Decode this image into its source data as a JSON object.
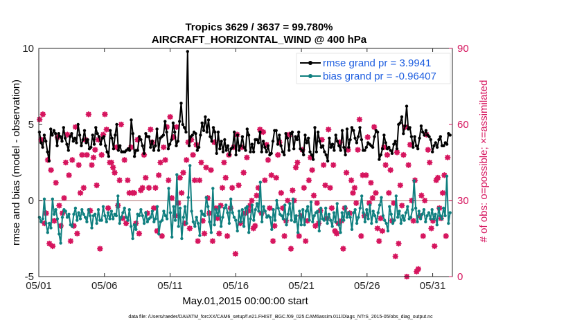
{
  "chart_data": {
    "type": "line",
    "title": "Tropics 3629 / 3637 = 99.780%",
    "subtitle": "AIRCRAFT_HORIZONTAL_WIND @ 400 hPa",
    "xlabel": "May.01,2015 00:00:00 start",
    "ylabel": "rmse and bias (model - observation)",
    "y2label": "# of obs: o=possible; ×=assimilated",
    "footnote": "data file: /Users/raeder/DAI/ATM_forcXX/CAM6_setup/f.e21.FHIST_BGC.f09_025.CAM6assim.011/Diags_NTrS_2015-05/obs_diag_output.nc",
    "xlim": [
      0,
      31.5
    ],
    "ylim": [
      -5,
      10
    ],
    "y2lim": [
      0,
      90
    ],
    "x_ticks": [
      0,
      5,
      10,
      15,
      20,
      25,
      30
    ],
    "x_tick_labels": [
      "05/01",
      "05/06",
      "05/11",
      "05/16",
      "05/21",
      "05/26",
      "05/31"
    ],
    "y_ticks": [
      -5,
      0,
      5,
      10
    ],
    "y_tick_labels": [
      "-5",
      "0",
      "5",
      "10"
    ],
    "y2_ticks": [
      0,
      30,
      60,
      90
    ],
    "y2_tick_labels": [
      "0",
      "30",
      "60",
      "90"
    ],
    "zero_line": true,
    "legend_position": "top-right",
    "colors": {
      "rmse": "#000000",
      "bias": "#0f7f7f",
      "obs": "#d6155e",
      "legend_text": "#1f5fe0",
      "zero_line": "#c9a0a0"
    },
    "series": [
      {
        "name": "rmse grand pr = 3.9941",
        "color": "#000000",
        "values": [
          4.5,
          3.8,
          3.5,
          4.3,
          3.9,
          3.2,
          2.6,
          4.7,
          4.3,
          4.6,
          4.4,
          3.6,
          4.4,
          4.2,
          3.9,
          4.8,
          4.1,
          3.7,
          3.3,
          4.2,
          4.4,
          3.9,
          4.1,
          3.8,
          5.0,
          4.3,
          3.6,
          4.0,
          4.6,
          3.8,
          4.0,
          3.4,
          3.5,
          4.3,
          3.7,
          4.8,
          4.4,
          4.2,
          3.7,
          4.1,
          4.2,
          3.6,
          3.2,
          2.9,
          4.6,
          4.1,
          3.4,
          4.3,
          5.0,
          3.3,
          3.6,
          3.2,
          3.2,
          3.2,
          3.3,
          3.4,
          3.3,
          5.3,
          4.4,
          2.9,
          3.3,
          3.3,
          4.2,
          4.0,
          3.6,
          3.1,
          4.4,
          4.2,
          4.2,
          3.5,
          3.9,
          3.3,
          3.6,
          4.7,
          3.3,
          4.1,
          4.2,
          4.3,
          5.2,
          4.5,
          3.4,
          3.7,
          4.0,
          5.1,
          4.5,
          3.6,
          3.9,
          5.2,
          6.4,
          5.0,
          4.8,
          4.5,
          9.8,
          3.6,
          4.2,
          4.3,
          4.5,
          4.4,
          3.3,
          3.5,
          4.3,
          5.1,
          4.6,
          5.5,
          4.5,
          5.3,
          4.2,
          3.9,
          4.8,
          4.5,
          3.1,
          4.5,
          3.4,
          3.9,
          3.2,
          4.0,
          3.3,
          3.6,
          3.0,
          3.4,
          3.5,
          4.5,
          3.0,
          4.3,
          3.3,
          3.6,
          4.2,
          3.5,
          3.3,
          4.7,
          4.3,
          3.2,
          3.7,
          3.2,
          4.0,
          4.0,
          3.8,
          4.5,
          3.2,
          3.9,
          3.5,
          3.2,
          3.6,
          3.0,
          3.1,
          3.9,
          4.6,
          4.6,
          3.7,
          4.3,
          3.6,
          3.2,
          3.0,
          4.4,
          4.1,
          3.3,
          4.4,
          4.5,
          3.4,
          4.2,
          4.0,
          4.5,
          3.4,
          3.3,
          3.0,
          4.3,
          3.8,
          4.1,
          3.2,
          3.0,
          2.7,
          4.8,
          3.2,
          4.5,
          3.9,
          3.5,
          3.6,
          3.2,
          3.0,
          2.6,
          4.1,
          3.5,
          3.7,
          3.3,
          4.3,
          3.9,
          3.6,
          3.3,
          4.6,
          3.5,
          3.0,
          4.7,
          3.5,
          4.0,
          4.8,
          4.6,
          4.1,
          3.8,
          4.2,
          4.8,
          4.0,
          3.3,
          3.3,
          3.5,
          3.8,
          3.7,
          3.6,
          3.5,
          4.2,
          4.6,
          4.5,
          2.7,
          3.0,
          3.4,
          4.3,
          3.8,
          3.4,
          3.5,
          3.3,
          3.1,
          3.7,
          3.9,
          3.4,
          5.0,
          5.1,
          5.5,
          4.4,
          4.9,
          6.2,
          4.7,
          4.8,
          4.2,
          3.5,
          4.2,
          3.6,
          3.4,
          4.1,
          4.9,
          4.5,
          4.3,
          4.6,
          4.3,
          4.2,
          4.0,
          3.2,
          3.6,
          3.8,
          3.5,
          4.0,
          4.2,
          3.6,
          3.6,
          3.8,
          3.7,
          4.4,
          4.3
        ]
      },
      {
        "name": "bias grand pr = -0.96407",
        "color": "#0f7f7f",
        "values": [
          -1.1,
          -1.4,
          -1.2,
          0.1,
          -1.5,
          -2.1,
          -1.5,
          -1.8,
          0.1,
          -0.9,
          -0.6,
          -1.2,
          -2.2,
          -2.8,
          -1.1,
          -0.6,
          -0.7,
          -1.1,
          -0.9,
          -1.6,
          -1.7,
          -0.9,
          -0.5,
          -1.3,
          -0.8,
          -1.2,
          -0.6,
          -0.9,
          -1.1,
          -1.4,
          -0.6,
          -1.0,
          -1.8,
          -1.0,
          -0.9,
          -1.5,
          -0.6,
          -1.3,
          -1.3,
          -0.4,
          -1.0,
          -1.4,
          -0.8,
          -1.2,
          -0.7,
          -1.2,
          -0.9,
          -1.0,
          0.3,
          -1.5,
          -1.1,
          -0.8,
          -0.5,
          -1.1,
          -1.3,
          -0.6,
          -1.7,
          -2.5,
          -1.6,
          -1.9,
          -0.9,
          -1.0,
          -0.6,
          -1.0,
          -1.5,
          -0.8,
          -1.4,
          -1.2,
          -1.1,
          -0.7,
          -1.4,
          -1.2,
          -0.4,
          -2.2,
          -1.4,
          -1.3,
          -0.7,
          -1.0,
          -1.2,
          0.8,
          -0.8,
          -2.4,
          -0.4,
          -1.3,
          1.7,
          -1.7,
          -0.5,
          -2.5,
          -1.1,
          -0.4,
          -1.5,
          0.2,
          2.3,
          -0.7,
          -1.4,
          -1.7,
          -1.1,
          -1.5,
          -2.3,
          -0.7,
          -0.9,
          -1.0,
          0.2,
          -0.4,
          -1.4,
          -2.1,
          0.8,
          -1.6,
          -0.6,
          -1.0,
          -0.4,
          -1.7,
          -1.1,
          -0.5,
          -0.3,
          -0.8,
          -1.5,
          0.1,
          -0.8,
          -1.1,
          -1.3,
          -2.0,
          -0.7,
          -1.4,
          -0.6,
          -1.7,
          -0.5,
          -0.4,
          -2.1,
          -1.2,
          -0.3,
          -1.3,
          -0.6,
          -0.2,
          -0.7,
          1.2,
          -1.4,
          -0.4,
          -0.7,
          -1.1,
          -1.0,
          -1.1,
          -1.9,
          -0.6,
          -1.3,
          0.0,
          -0.5,
          -0.9,
          -1.0,
          -1.2,
          -0.3,
          -1.6,
          -0.9,
          -0.2,
          -1.3,
          0.1,
          -1.4,
          -1.0,
          -2.1,
          -0.7,
          -1.6,
          -0.6,
          -1.6,
          -0.7,
          -0.4,
          -1.3,
          -0.1,
          -1.4,
          -1.0,
          -0.8,
          -0.7,
          -2.0,
          -0.5,
          -1.2,
          -1.3,
          -0.5,
          -1.5,
          -0.9,
          -1.3,
          -1.7,
          -0.8,
          -1.4,
          -0.2,
          -1.6,
          -2.1,
          -0.8,
          -1.3,
          -0.4,
          -1.1,
          -0.8,
          -1.1,
          -1.9,
          -0.8,
          -0.6,
          -1.5,
          -1.1,
          -0.5,
          0.3,
          -0.8,
          -1.4,
          -0.6,
          -1.2,
          -0.3,
          -1.5,
          -0.7,
          -1.0,
          -1.4,
          -0.8,
          -0.3,
          0.2,
          -1.0,
          -1.3,
          -1.5,
          -2.0,
          -0.4,
          -0.9,
          -1.5,
          -1.3,
          0.3,
          -1.1,
          -0.7,
          -1.5,
          -1.0,
          -1.3,
          -0.8,
          -0.4,
          -1.2,
          -1.1,
          -0.6,
          1.3,
          -0.5,
          -1.4,
          -0.7,
          -1.2,
          -0.9,
          -0.6,
          -1.4,
          -1.0,
          -0.8,
          -1.2,
          -0.6,
          -1.2,
          -0.9,
          -1.6,
          -0.5,
          -1.0,
          -1.2,
          -0.5,
          -1.0,
          1.6,
          -1.5,
          -0.8
        ]
      }
    ],
    "assimilated_obs": [
      62,
      54,
      64,
      21,
      25,
      46,
      13,
      42,
      12,
      22,
      37,
      55,
      28,
      20,
      25,
      31,
      45,
      56,
      40,
      14,
      46,
      20,
      59,
      17,
      44,
      33,
      48,
      35,
      54,
      48,
      64,
      26,
      44,
      47,
      50,
      36,
      54,
      11,
      48,
      56,
      64,
      58,
      27,
      45,
      45,
      43,
      41,
      51,
      28,
      38,
      60,
      23,
      46,
      21,
      38,
      33,
      51,
      33,
      33,
      21,
      54,
      17,
      34,
      35,
      48,
      39,
      25,
      35,
      58,
      53,
      27,
      35,
      18,
      40,
      45,
      16,
      51,
      46,
      59,
      38,
      63,
      31,
      55,
      24,
      59,
      29,
      39,
      33,
      41,
      21,
      46,
      53,
      19,
      54,
      48,
      38,
      52,
      14,
      38,
      45,
      22,
      17,
      43,
      31,
      25,
      42,
      14,
      53,
      27,
      23,
      17,
      28,
      35,
      45,
      39,
      16,
      48,
      27,
      35,
      51,
      9,
      56,
      36,
      21,
      51,
      41,
      25,
      47,
      26,
      28,
      30,
      19,
      20,
      32,
      35,
      58,
      25,
      57,
      38,
      52,
      46,
      27,
      40,
      14,
      20,
      39,
      48,
      53,
      33,
      27,
      16,
      22,
      30,
      56,
      11,
      34,
      30,
      43,
      45,
      16,
      24,
      50,
      35,
      14,
      22,
      38,
      47,
      42,
      32,
      20,
      29,
      21,
      26,
      54,
      44,
      36,
      23,
      58,
      35,
      27,
      44,
      18,
      17,
      21,
      53,
      22,
      11,
      27,
      41,
      50,
      25,
      38,
      33,
      35,
      29,
      50,
      62,
      16,
      40,
      24,
      40,
      55,
      29,
      37,
      31,
      59,
      33,
      19,
      14,
      23,
      18,
      51,
      44,
      48,
      33,
      42,
      22,
      29,
      8,
      49,
      13,
      36,
      28,
      48,
      59,
      0,
      44,
      52,
      30,
      22,
      38,
      2,
      3,
      24,
      32,
      16,
      30,
      56,
      50,
      45,
      19,
      22,
      12,
      38,
      39,
      27,
      23,
      33,
      40,
      16,
      47
    ]
  }
}
